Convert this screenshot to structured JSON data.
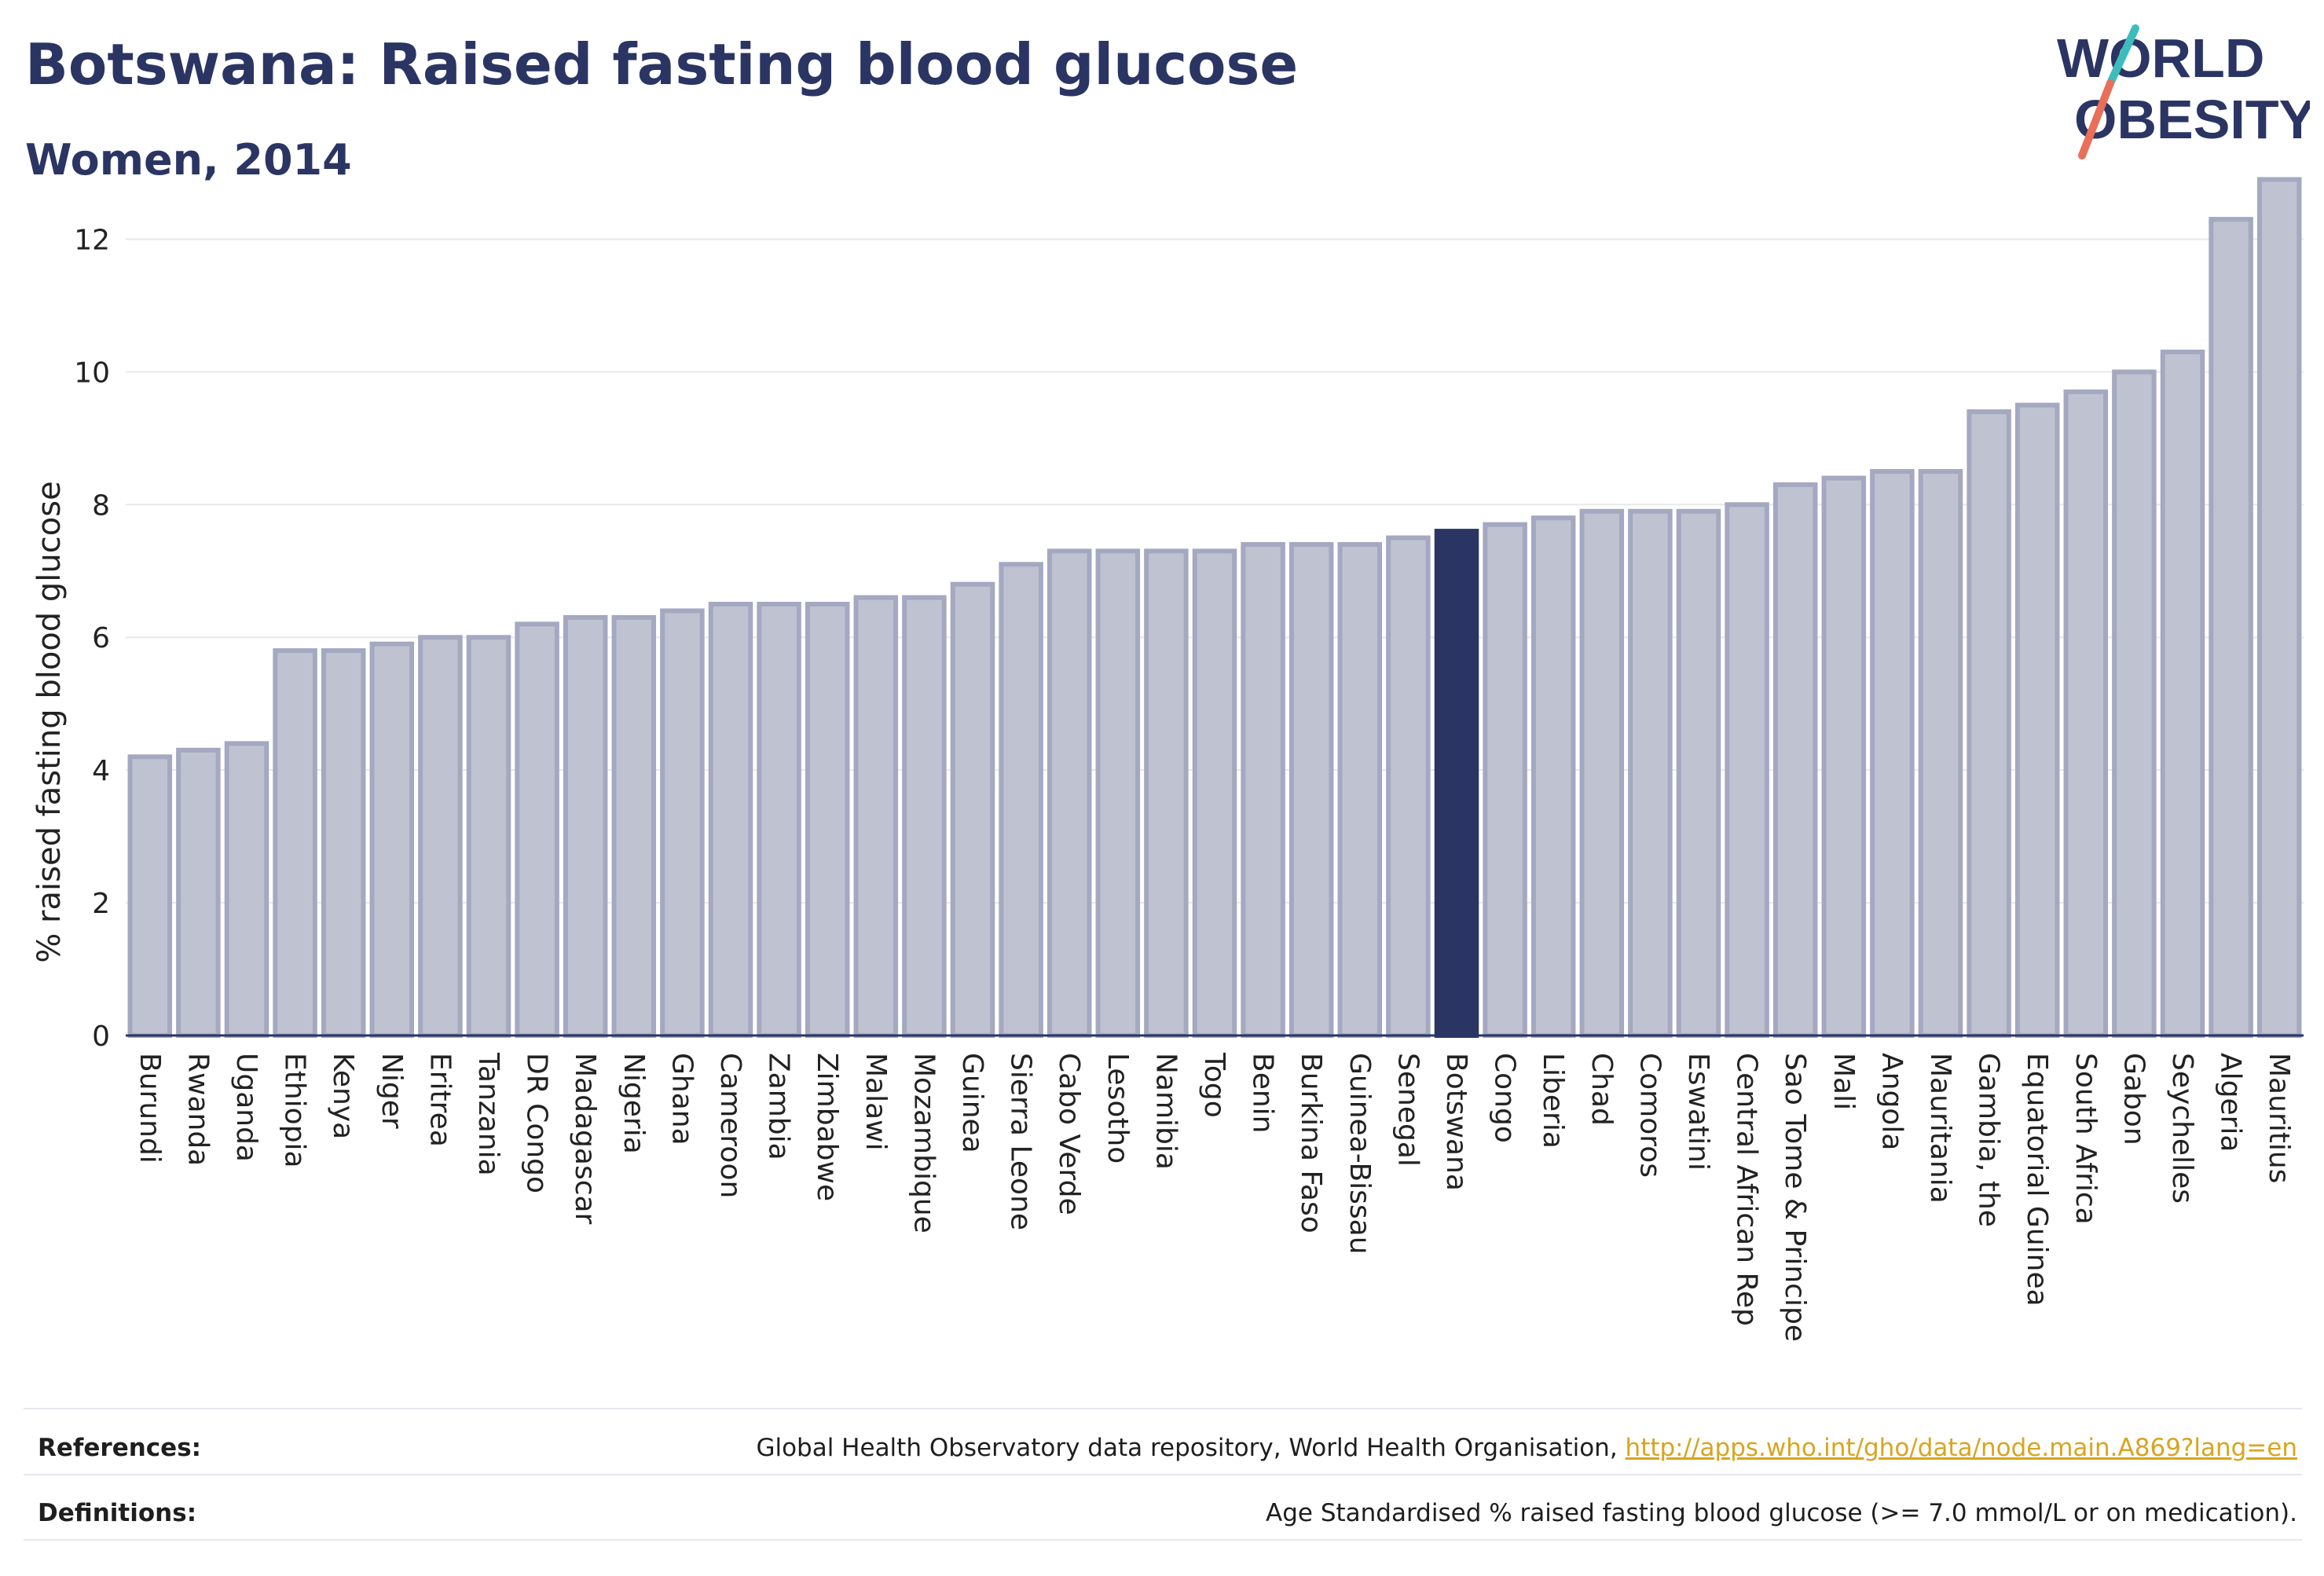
{
  "header": {
    "title": "Botswana: Raised fasting blood glucose",
    "subtitle": "Women, 2014",
    "logo_line1": "WORLD",
    "logo_line2": "OBESITY"
  },
  "colors": {
    "bar_fill": "#bfc3d1",
    "bar_stroke": "#a4a8c0",
    "highlight": "#2b3563",
    "grid": "#e6e8ee",
    "axis_text": "#222222",
    "logo_teal": "#3cbcbc",
    "logo_coral": "#e8705a",
    "link": "#d8a520"
  },
  "chart_data": {
    "type": "bar",
    "title": "",
    "xlabel": "",
    "ylabel": "% raised fasting blood glucose",
    "ylim": [
      0,
      13
    ],
    "yticks": [
      0,
      2,
      4,
      6,
      8,
      10,
      12
    ],
    "highlight": "Botswana",
    "grid": true,
    "categories": [
      "Burundi",
      "Rwanda",
      "Uganda",
      "Ethiopia",
      "Kenya",
      "Niger",
      "Eritrea",
      "Tanzania",
      "DR Congo",
      "Madagascar",
      "Nigeria",
      "Ghana",
      "Cameroon",
      "Zambia",
      "Zimbabwe",
      "Malawi",
      "Mozambique",
      "Guinea",
      "Sierra Leone",
      "Cabo Verde",
      "Lesotho",
      "Namibia",
      "Togo",
      "Benin",
      "Burkina Faso",
      "Guinea-Bissau",
      "Senegal",
      "Botswana",
      "Congo",
      "Liberia",
      "Chad",
      "Comoros",
      "Eswatini",
      "Central African Rep",
      "Sao Tome & Principe",
      "Mali",
      "Angola",
      "Mauritania",
      "Gambia, the",
      "Equatorial Guinea",
      "South Africa",
      "Gabon",
      "Seychelles",
      "Algeria",
      "Mauritius"
    ],
    "values": [
      4.2,
      4.3,
      4.4,
      5.8,
      5.8,
      5.9,
      6.0,
      6.0,
      6.2,
      6.3,
      6.3,
      6.4,
      6.5,
      6.5,
      6.5,
      6.6,
      6.6,
      6.8,
      7.1,
      7.3,
      7.3,
      7.3,
      7.3,
      7.4,
      7.4,
      7.4,
      7.5,
      7.6,
      7.7,
      7.8,
      7.9,
      7.9,
      7.9,
      8.0,
      8.3,
      8.4,
      8.5,
      8.5,
      9.4,
      9.5,
      9.7,
      10.0,
      10.3,
      12.3,
      12.9
    ]
  },
  "footer": {
    "references_label": "References:",
    "references_text": "Global Health Observatory data repository, World Health Organisation, ",
    "references_link": "http://apps.who.int/gho/data/node.main.A869?lang=en",
    "definitions_label": "Definitions:",
    "definitions_text": "Age Standardised % raised fasting blood glucose (>= 7.0 mmol/L or on medication)."
  }
}
